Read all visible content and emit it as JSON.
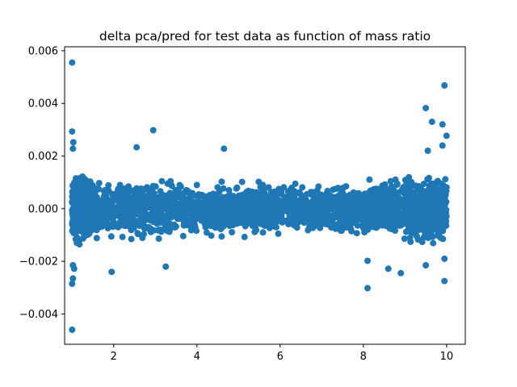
{
  "chart_data": {
    "type": "scatter",
    "title": "delta pca/pred for test data as function of mass ratio",
    "xlabel": "",
    "ylabel": "",
    "xlim": [
      0.82,
      10.45
    ],
    "ylim": [
      -0.00515,
      0.00615
    ],
    "xticks": [
      2,
      4,
      6,
      8,
      10
    ],
    "xtick_labels": [
      "2",
      "4",
      "6",
      "8",
      "10"
    ],
    "yticks": [
      -0.004,
      -0.002,
      0.0,
      0.002,
      0.004,
      0.006
    ],
    "ytick_labels": [
      "−0.004",
      "−0.002",
      "0.000",
      "0.002",
      "0.004",
      "0.006"
    ],
    "grid": false,
    "marker_color": "#1f77b4",
    "series": [
      {
        "cloud": {
          "x_range": [
            1.0,
            10.0
          ],
          "description": "dense band of test points; spread is widest near mass ratio 1 and near 10, narrowest around 6-8",
          "envelope_x": [
            1.0,
            1.5,
            2.0,
            3.0,
            4.0,
            5.0,
            6.0,
            7.0,
            8.0,
            8.5,
            9.0,
            9.5,
            10.0
          ],
          "envelope_upper": [
            0.0018,
            0.0016,
            0.0014,
            0.0015,
            0.0014,
            0.0013,
            0.0012,
            0.0012,
            0.0013,
            0.0014,
            0.0016,
            0.0018,
            0.002
          ],
          "envelope_lower": [
            -0.0018,
            -0.0016,
            -0.0014,
            -0.0015,
            -0.0014,
            -0.0014,
            -0.0013,
            -0.0013,
            -0.0014,
            -0.0015,
            -0.0017,
            -0.0019,
            -0.002
          ]
        },
        "outliers": [
          {
            "x": 1.0,
            "y": 0.00555
          },
          {
            "x": 1.0,
            "y": 0.00293
          },
          {
            "x": 1.03,
            "y": 0.00252
          },
          {
            "x": 1.02,
            "y": 0.00228
          },
          {
            "x": 1.0,
            "y": -0.0046
          },
          {
            "x": 1.0,
            "y": -0.00285
          },
          {
            "x": 1.02,
            "y": -0.00265
          },
          {
            "x": 1.05,
            "y": -0.00228
          },
          {
            "x": 1.02,
            "y": -0.00215
          },
          {
            "x": 1.95,
            "y": -0.0024
          },
          {
            "x": 2.95,
            "y": 0.00298
          },
          {
            "x": 2.55,
            "y": 0.00233
          },
          {
            "x": 3.25,
            "y": -0.0022
          },
          {
            "x": 4.65,
            "y": 0.00228
          },
          {
            "x": 8.1,
            "y": -0.00302
          },
          {
            "x": 8.1,
            "y": -0.00198
          },
          {
            "x": 8.9,
            "y": -0.00245
          },
          {
            "x": 8.6,
            "y": -0.00228
          },
          {
            "x": 9.5,
            "y": 0.00382
          },
          {
            "x": 9.65,
            "y": 0.0033
          },
          {
            "x": 9.9,
            "y": 0.0032
          },
          {
            "x": 9.55,
            "y": 0.0022
          },
          {
            "x": 9.95,
            "y": 0.00468
          },
          {
            "x": 10.0,
            "y": 0.00277
          },
          {
            "x": 9.9,
            "y": 0.0024
          },
          {
            "x": 9.95,
            "y": -0.00275
          },
          {
            "x": 9.5,
            "y": -0.00215
          },
          {
            "x": 9.95,
            "y": -0.0019
          }
        ]
      }
    ]
  }
}
